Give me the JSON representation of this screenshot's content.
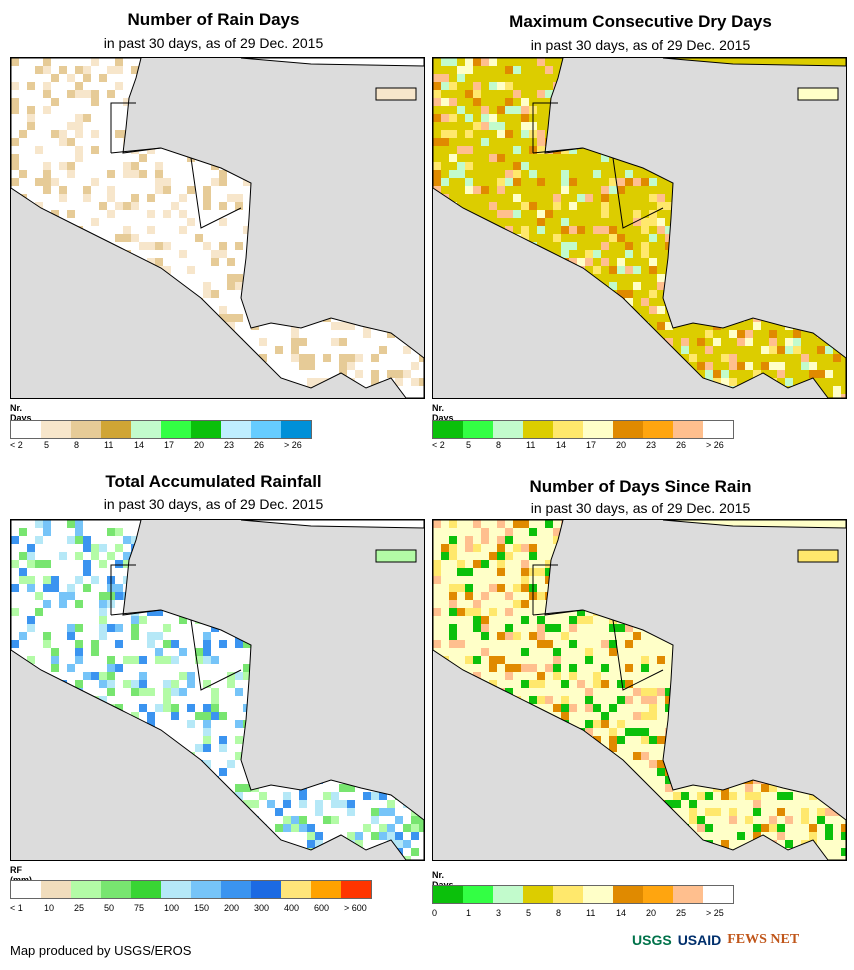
{
  "maps": [
    {
      "title": "Number of Rain Days",
      "subtitle": "in past 30 days, as of 29 Dec. 2015",
      "legend_title": "Nr. Days",
      "colors": [
        "#ffffff",
        "#f7e6cb",
        "#e6cb97",
        "#d0a535",
        "#c2fbcc",
        "#33ff44",
        "#0bc00b",
        "#bfeeff",
        "#66ccff",
        "#0090d8"
      ],
      "ticks": [
        "< 2",
        "5",
        "8",
        "11",
        "14",
        "17",
        "20",
        "23",
        "26",
        "> 26"
      ]
    },
    {
      "title": "Maximum Consecutive Dry Days",
      "subtitle": "in past 30 days, as of 29 Dec. 2015",
      "legend_title": "Nr. Days",
      "colors": [
        "#0bc00b",
        "#33ff44",
        "#c2fbcc",
        "#dccd00",
        "#ffe86c",
        "#ffffc8",
        "#e08a00",
        "#ffa50f",
        "#ffbf8e",
        "#ffffff"
      ],
      "ticks": [
        "< 2",
        "5",
        "8",
        "11",
        "14",
        "17",
        "20",
        "23",
        "26",
        "> 26"
      ]
    },
    {
      "title": "Total Accumulated Rainfall",
      "subtitle": "in past 30 days, as of 29 Dec. 2015",
      "legend_title": "RF (mm)",
      "colors": [
        "#ffffff",
        "#f1ddbd",
        "#b3fba6",
        "#78e570",
        "#39d534",
        "#b5e8f7",
        "#76c4f8",
        "#3b94f0",
        "#1c6ae3",
        "#ffe57a",
        "#ffa200",
        "#ff3500"
      ],
      "ticks": [
        "< 1",
        "10",
        "25",
        "50",
        "75",
        "100",
        "150",
        "200",
        "300",
        "400",
        "600",
        "> 600"
      ]
    },
    {
      "title": "Number of Days Since Rain",
      "subtitle": "in past 30 days, as of 29 Dec. 2015",
      "legend_title": "Nr. Days",
      "colors": [
        "#0bc00b",
        "#33ff44",
        "#c2fbcc",
        "#dccd00",
        "#ffe86c",
        "#ffffc8",
        "#e08a00",
        "#ffa50f",
        "#ffbf8e",
        "#ffffff"
      ],
      "ticks": [
        "0",
        "1",
        "3",
        "5",
        "8",
        "11",
        "14",
        "20",
        "25",
        "> 25"
      ]
    }
  ],
  "footer": "Map produced by USGS/EROS",
  "logos": [
    "USGS",
    "USAID",
    "FEWS NET"
  ]
}
